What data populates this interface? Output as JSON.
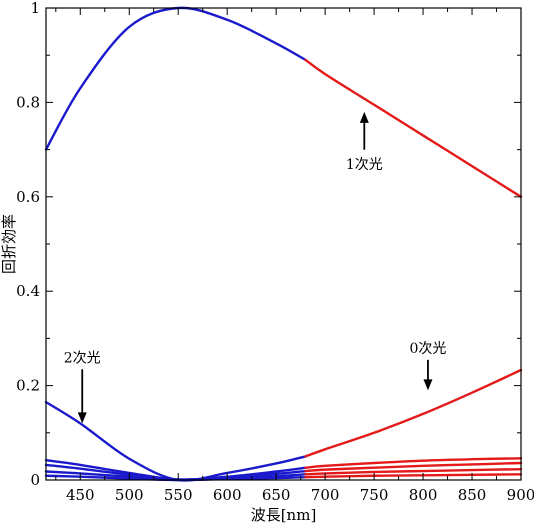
{
  "chart_data": {
    "type": "line",
    "xlabel": "波長[nm]",
    "ylabel": "回折効率",
    "xlim": [
      415,
      900
    ],
    "ylim": [
      0,
      1
    ],
    "x_ticks": [
      "450",
      "500",
      "550",
      "600",
      "650",
      "700",
      "750",
      "800",
      "850",
      "900"
    ],
    "y_ticks": [
      "0",
      "0.2",
      "0.4",
      "0.6",
      "0.8",
      "1"
    ],
    "grid": false,
    "series": [
      {
        "color": "#1a1acc",
        "x": [
          415,
          450,
          500,
          550,
          600,
          650,
          680
        ],
        "y": [
          0.7,
          0.83,
          0.96,
          1.0,
          0.975,
          0.925,
          0.89
        ]
      },
      {
        "color": "#e41a1a",
        "x": [
          680,
          700,
          750,
          800,
          850,
          900
        ],
        "y": [
          0.89,
          0.86,
          0.795,
          0.73,
          0.665,
          0.6
        ]
      },
      {
        "color": "#1a1acc",
        "x": [
          415,
          450,
          500,
          550,
          600,
          650,
          680
        ],
        "y": [
          0.165,
          0.12,
          0.045,
          0.0,
          0.015,
          0.035,
          0.05
        ]
      },
      {
        "color": "#e41a1a",
        "x": [
          680,
          700,
          750,
          800,
          850,
          900
        ],
        "y": [
          0.05,
          0.065,
          0.1,
          0.14,
          0.185,
          0.233
        ]
      },
      {
        "color": "#1a1acc",
        "x": [
          415,
          450,
          500,
          550,
          600,
          650,
          680
        ],
        "y": [
          0.042,
          0.032,
          0.015,
          0.001,
          0.007,
          0.018,
          0.026
        ]
      },
      {
        "color": "#e41a1a",
        "x": [
          680,
          700,
          750,
          800,
          850,
          900
        ],
        "y": [
          0.026,
          0.03,
          0.036,
          0.041,
          0.044,
          0.046
        ]
      },
      {
        "color": "#1a1acc",
        "x": [
          415,
          450,
          500,
          550,
          600,
          650,
          680
        ],
        "y": [
          0.032,
          0.024,
          0.011,
          0.001,
          0.005,
          0.013,
          0.019
        ]
      },
      {
        "color": "#e41a1a",
        "x": [
          680,
          700,
          750,
          800,
          850,
          900
        ],
        "y": [
          0.019,
          0.022,
          0.026,
          0.03,
          0.033,
          0.036
        ]
      },
      {
        "color": "#1a1acc",
        "x": [
          415,
          450,
          500,
          550,
          600,
          650,
          680
        ],
        "y": [
          0.018,
          0.014,
          0.007,
          0.0,
          0.003,
          0.008,
          0.012
        ]
      },
      {
        "color": "#e41a1a",
        "x": [
          680,
          700,
          750,
          800,
          850,
          900
        ],
        "y": [
          0.012,
          0.014,
          0.017,
          0.019,
          0.021,
          0.023
        ]
      },
      {
        "color": "#1a1acc",
        "x": [
          415,
          450,
          500,
          550,
          600,
          650,
          680
        ],
        "y": [
          0.009,
          0.007,
          0.003,
          0.0,
          0.002,
          0.004,
          0.006
        ]
      },
      {
        "color": "#e41a1a",
        "x": [
          680,
          700,
          750,
          800,
          850,
          900
        ],
        "y": [
          0.006,
          0.007,
          0.009,
          0.01,
          0.011,
          0.012
        ]
      }
    ],
    "annotations": [
      {
        "text": "1次光",
        "x": 740,
        "y": 0.67,
        "arrow_to": [
          740,
          0.78
        ]
      },
      {
        "text": "2次光",
        "x": 452,
        "y": 0.26,
        "arrow_to": [
          452,
          0.12
        ]
      },
      {
        "text": "0次光",
        "x": 805,
        "y": 0.28,
        "arrow_to": [
          805,
          0.19
        ]
      }
    ]
  }
}
